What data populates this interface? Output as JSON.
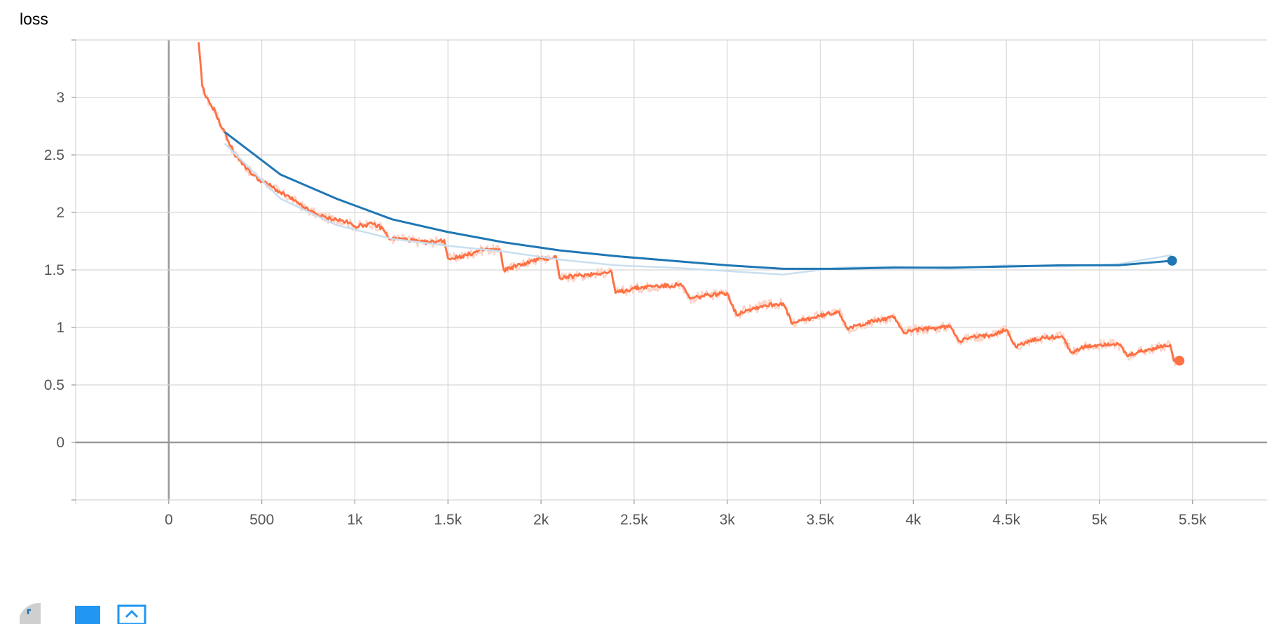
{
  "chart_title": "loss",
  "chart_data": {
    "type": "line",
    "title": "loss",
    "xlabel": "",
    "ylabel": "",
    "xlim": [
      -500,
      5900
    ],
    "ylim": [
      -0.5,
      3.5
    ],
    "grid": true,
    "x_ticks": [
      0,
      500,
      1000,
      1500,
      2000,
      2500,
      3000,
      3500,
      4000,
      4500,
      5000,
      5500
    ],
    "x_tick_labels": [
      "0",
      "500",
      "1k",
      "1.5k",
      "2k",
      "2.5k",
      "3k",
      "3.5k",
      "4k",
      "4.5k",
      "5k",
      "5.5k"
    ],
    "y_ticks": [
      0,
      0.5,
      1,
      1.5,
      2,
      2.5,
      3
    ],
    "y_tick_labels": [
      "0",
      "0.5",
      "1",
      "1.5",
      "2",
      "2.5",
      "3"
    ],
    "series": [
      {
        "color": "#ff7043",
        "raw_color": "#fbd5c8",
        "end_marker": true,
        "x": [
          160,
          180,
          200,
          220,
          250,
          280,
          300,
          320,
          350,
          400,
          450,
          500,
          550,
          600,
          650,
          700,
          750,
          800,
          850,
          900,
          950,
          1000,
          1050,
          1100,
          1150,
          1180,
          1200,
          1250,
          1300,
          1350,
          1400,
          1450,
          1480,
          1500,
          1520,
          1600,
          1700,
          1780,
          1800,
          1900,
          2000,
          2050,
          2080,
          2100,
          2200,
          2300,
          2380,
          2400,
          2500,
          2600,
          2700,
          2750,
          2800,
          2900,
          3000,
          3050,
          3100,
          3200,
          3300,
          3350,
          3400,
          3500,
          3600,
          3650,
          3700,
          3800,
          3900,
          3950,
          4000,
          4100,
          4200,
          4250,
          4300,
          4400,
          4500,
          4550,
          4600,
          4700,
          4800,
          4850,
          4900,
          5000,
          5100,
          5150,
          5200,
          5300,
          5380,
          5400,
          5430
        ],
        "y": [
          3.48,
          3.1,
          3.0,
          2.95,
          2.88,
          2.75,
          2.7,
          2.62,
          2.52,
          2.42,
          2.33,
          2.27,
          2.23,
          2.17,
          2.13,
          2.07,
          2.02,
          1.98,
          1.95,
          1.94,
          1.92,
          1.88,
          1.89,
          1.9,
          1.86,
          1.78,
          1.77,
          1.77,
          1.76,
          1.74,
          1.74,
          1.75,
          1.76,
          1.6,
          1.6,
          1.63,
          1.68,
          1.67,
          1.5,
          1.55,
          1.6,
          1.6,
          1.62,
          1.43,
          1.45,
          1.47,
          1.48,
          1.3,
          1.34,
          1.36,
          1.36,
          1.38,
          1.25,
          1.28,
          1.3,
          1.11,
          1.15,
          1.19,
          1.21,
          1.03,
          1.06,
          1.1,
          1.14,
          0.98,
          1.02,
          1.06,
          1.09,
          0.95,
          0.98,
          0.99,
          1.01,
          0.88,
          0.91,
          0.93,
          0.98,
          0.83,
          0.87,
          0.91,
          0.92,
          0.78,
          0.82,
          0.85,
          0.86,
          0.75,
          0.78,
          0.82,
          0.85,
          0.71,
          0.71
        ]
      },
      {
        "color": "#1f77b4",
        "raw_color": "#c9dff0",
        "end_marker": true,
        "x": [
          300,
          600,
          900,
          1200,
          1500,
          1800,
          2100,
          2400,
          2700,
          3000,
          3300,
          3600,
          3900,
          4200,
          4500,
          4800,
          5100,
          5390
        ],
        "y": [
          2.7,
          2.33,
          2.12,
          1.94,
          1.83,
          1.74,
          1.67,
          1.62,
          1.58,
          1.54,
          1.51,
          1.51,
          1.52,
          1.52,
          1.53,
          1.54,
          1.54,
          1.58
        ],
        "raw_y": [
          2.6,
          2.12,
          1.89,
          1.77,
          1.71,
          1.66,
          1.59,
          1.54,
          1.52,
          1.49,
          1.46,
          1.52,
          1.53,
          1.51,
          1.54,
          1.53,
          1.55,
          1.63
        ]
      }
    ]
  }
}
